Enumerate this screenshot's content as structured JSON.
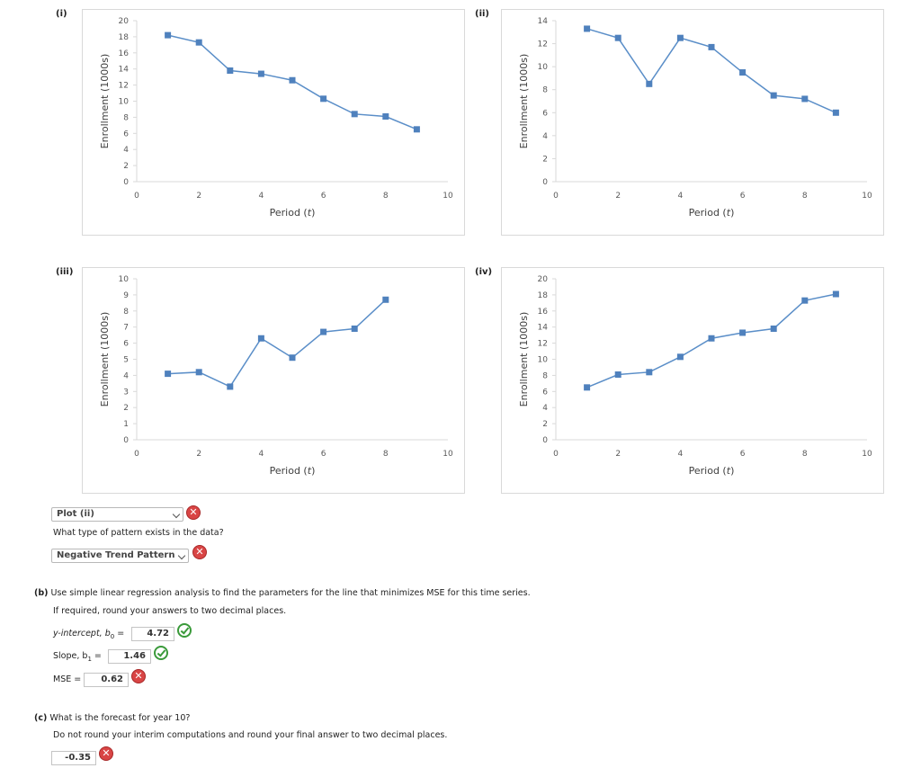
{
  "chart_data": [
    {
      "label": "(i)",
      "type": "line",
      "ylabel": "Enrollment (1000s)",
      "xlabel_main": "Period",
      "xlabel_var": "t",
      "xlim": [
        0,
        10
      ],
      "ylim": [
        0,
        20
      ],
      "xticks": [
        0,
        2,
        4,
        6,
        8,
        10
      ],
      "yticks": [
        0,
        2,
        4,
        6,
        8,
        10,
        12,
        14,
        16,
        18,
        20
      ],
      "x": [
        1,
        2,
        3,
        4,
        5,
        6,
        7,
        8,
        9
      ],
      "y": [
        18.2,
        17.3,
        13.8,
        13.4,
        12.6,
        10.3,
        8.4,
        8.1,
        6.5
      ],
      "color": "#5a8ec8"
    },
    {
      "label": "(ii)",
      "type": "line",
      "ylabel": "Enrollment (1000s)",
      "xlabel_main": "Period",
      "xlabel_var": "t",
      "xlim": [
        0,
        10
      ],
      "ylim": [
        0,
        14
      ],
      "xticks": [
        0,
        2,
        4,
        6,
        8,
        10
      ],
      "yticks": [
        0,
        2,
        4,
        6,
        8,
        10,
        12,
        14
      ],
      "x": [
        1,
        2,
        3,
        4,
        5,
        6,
        7,
        8,
        9
      ],
      "y": [
        13.3,
        12.5,
        8.5,
        12.5,
        11.7,
        9.5,
        7.5,
        7.2,
        6.0
      ],
      "color": "#5a8ec8"
    },
    {
      "label": "(iii)",
      "type": "line",
      "ylabel": "Enrollment (1000s)",
      "xlabel_main": "Period",
      "xlabel_var": "t",
      "xlim": [
        0,
        10
      ],
      "ylim": [
        0,
        10
      ],
      "xticks": [
        0,
        2,
        4,
        6,
        8,
        10
      ],
      "yticks": [
        0,
        1,
        2,
        3,
        4,
        5,
        6,
        7,
        8,
        9,
        10
      ],
      "x": [
        1,
        2,
        3,
        4,
        5,
        6,
        7,
        8
      ],
      "y": [
        4.1,
        4.2,
        3.3,
        6.3,
        5.1,
        6.7,
        6.9,
        8.7
      ],
      "color": "#5a8ec8"
    },
    {
      "label": "(iv)",
      "type": "line",
      "ylabel": "Enrollment (1000s)",
      "xlabel_main": "Period",
      "xlabel_var": "t",
      "xlim": [
        0,
        10
      ],
      "ylim": [
        0,
        20
      ],
      "xticks": [
        0,
        2,
        4,
        6,
        8,
        10
      ],
      "yticks": [
        0,
        2,
        4,
        6,
        8,
        10,
        12,
        14,
        16,
        18,
        20
      ],
      "x": [
        1,
        2,
        3,
        4,
        5,
        6,
        7,
        8,
        9
      ],
      "y": [
        6.5,
        8.1,
        8.4,
        10.3,
        12.6,
        13.3,
        13.8,
        17.3,
        18.1
      ],
      "color": "#5a8ec8"
    }
  ],
  "part_a": {
    "plot_select_value": "Plot (ii)",
    "pattern_question": "What type of pattern exists in the data?",
    "pattern_select_value": "Negative Trend Pattern"
  },
  "part_b": {
    "prefix": "(b)",
    "question": "Use simple linear regression analysis to find the parameters for the line that minimizes MSE for this time series.",
    "note": "If required, round your answers to two decimal places.",
    "intercept_label": "y-intercept, b",
    "intercept_sub": "0",
    "intercept_value": "4.72",
    "slope_label": "Slope, b",
    "slope_sub": "1",
    "slope_value": "1.46",
    "mse_label": "MSE =",
    "mse_value": "0.62"
  },
  "part_c": {
    "prefix": "(c)",
    "question": "What is the forecast for year 10?",
    "note": "Do not round your interim computations and round your final answer to two decimal places.",
    "forecast_value": "-0.35"
  },
  "icons": {
    "incorrect": "x-circle-icon",
    "correct": "check-circle-icon",
    "dropdown": "chevron-down-icon"
  }
}
